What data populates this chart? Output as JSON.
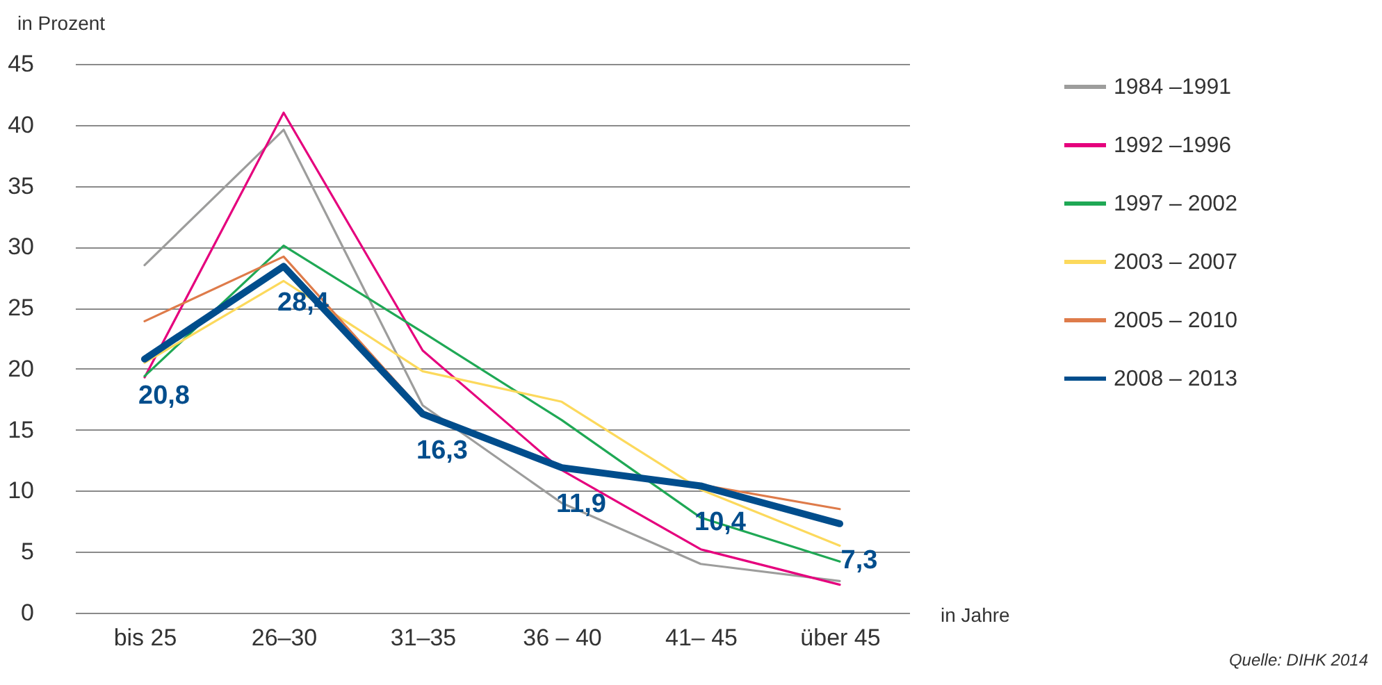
{
  "chart_data": {
    "type": "line",
    "ylabel": "in Prozent",
    "xlabel": "in Jahre",
    "categories": [
      "bis 25",
      "26–30",
      "31–35",
      "36 – 40",
      "41– 45",
      "über 45"
    ],
    "series": [
      {
        "name": "1984 –1991",
        "color": "#9d9d9c",
        "values": [
          28.5,
          39.6,
          17.0,
          9.0,
          4.0,
          2.6
        ]
      },
      {
        "name": "1992 –1996",
        "color": "#e5007d",
        "values": [
          19.3,
          41.0,
          21.5,
          11.7,
          5.2,
          2.3
        ]
      },
      {
        "name": "1997 – 2002",
        "color": "#1fa855",
        "values": [
          19.4,
          30.1,
          23.0,
          15.8,
          7.8,
          4.2
        ]
      },
      {
        "name": "2003 – 2007",
        "color": "#fcd95c",
        "values": [
          20.5,
          27.2,
          19.8,
          17.3,
          10.1,
          5.5
        ]
      },
      {
        "name": "2005 – 2010",
        "color": "#de7b4a",
        "values": [
          23.9,
          29.2,
          16.5,
          12.0,
          10.5,
          8.5
        ]
      },
      {
        "name": "2008 – 2013",
        "color": "#004d8c",
        "values": [
          20.8,
          28.4,
          16.3,
          11.9,
          10.4,
          7.3
        ],
        "value_labels": [
          "20,8",
          "28,4",
          "16,3",
          "11,9",
          "10,4",
          "7,3"
        ]
      }
    ],
    "ylim": [
      0,
      45
    ],
    "yticks": [
      0,
      5,
      10,
      15,
      20,
      25,
      30,
      35,
      40,
      45
    ],
    "grid": "y",
    "legend": "right",
    "annotations": [
      "Quelle: DIHK 2014"
    ]
  }
}
